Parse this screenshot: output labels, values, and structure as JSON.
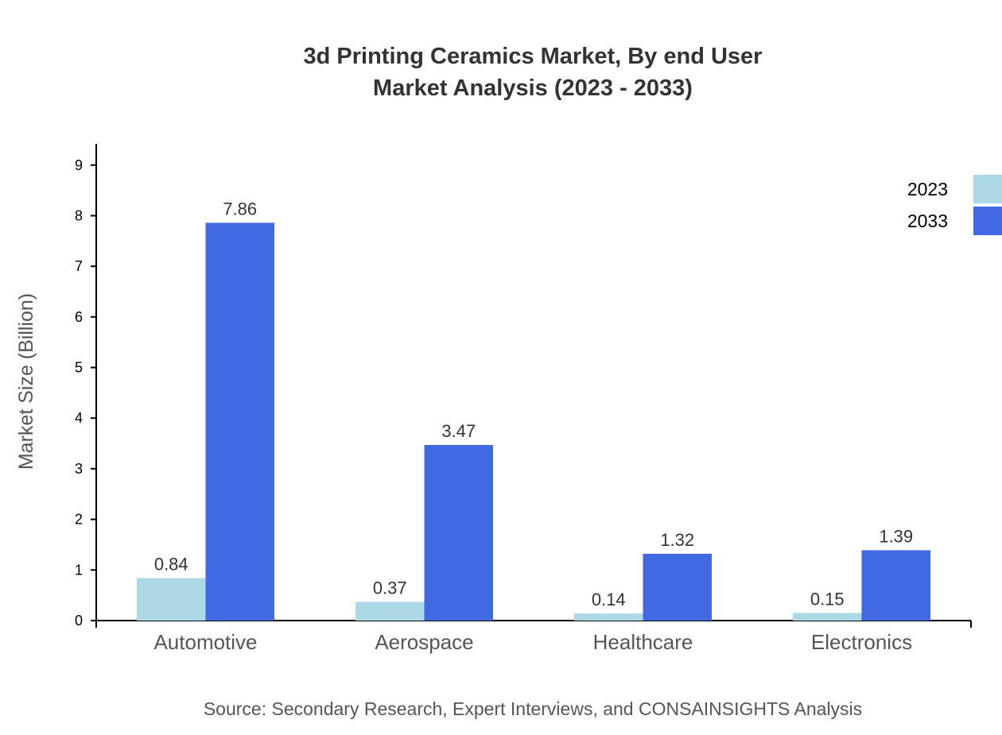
{
  "chart_data": {
    "type": "bar",
    "title_line1": "3d Printing Ceramics Market, By end User",
    "title_line2": "Market Analysis (2023 - 2033)",
    "xlabel": "",
    "ylabel": "Market Size (Billion)",
    "source": "Source: Secondary Research, Expert Interviews, and CONSAINSIGHTS Analysis",
    "categories": [
      "Automotive",
      "Aerospace",
      "Healthcare",
      "Electronics"
    ],
    "series": [
      {
        "name": "2023",
        "color": "#add8e6",
        "values": [
          0.84,
          0.37,
          0.14,
          0.15
        ]
      },
      {
        "name": "2033",
        "color": "#4169e1",
        "values": [
          7.86,
          3.47,
          1.32,
          1.39
        ]
      }
    ],
    "yticks": [
      "0",
      "1",
      "2",
      "3",
      "4",
      "5",
      "6",
      "7",
      "8",
      "9"
    ],
    "ylim": [
      0,
      9.42
    ],
    "grid": false,
    "legend_position": "top-right"
  }
}
